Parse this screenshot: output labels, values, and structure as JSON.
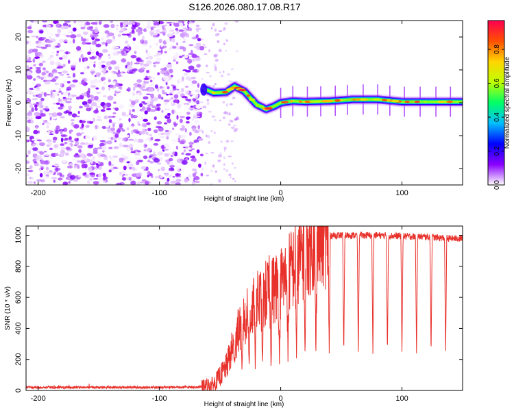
{
  "chart_data": [
    {
      "type": "heatmap",
      "title": "S126.2026.080.17.08.R17",
      "xlabel": "Height of straight line (km)",
      "ylabel": "Frequency (Hz)",
      "xlim": [
        -210,
        150
      ],
      "ylim": [
        -25,
        25
      ],
      "xticks": [
        -200,
        -100,
        0,
        100
      ],
      "xtick_labels": [
        "-200",
        "-100",
        "0",
        "100"
      ],
      "yticks": [
        -20,
        -10,
        0,
        10,
        20
      ],
      "ytick_labels": [
        "-20",
        "-10",
        "0",
        "10",
        "20"
      ],
      "noise_region_x": [
        -210,
        -65
      ],
      "signal_onset_x": -65,
      "ridge": {
        "x": [
          -65,
          -55,
          -45,
          -38,
          -30,
          -20,
          -12,
          -5,
          0,
          10,
          20,
          40,
          60,
          80,
          100,
          120,
          150
        ],
        "y": [
          4.5,
          3.0,
          3.2,
          5.0,
          3.5,
          -0.5,
          -2.0,
          -1.0,
          0.0,
          0.5,
          0.3,
          0.5,
          1.0,
          1.0,
          0.3,
          0.3,
          0.3
        ]
      },
      "colorbar": {
        "label": "Normalized spectral amplitude",
        "range": [
          0,
          0.97
        ],
        "ticks": [
          0,
          0.2,
          0.4,
          0.6,
          0.8
        ],
        "tick_labels": [
          "0.0",
          "0.2",
          "0.4",
          "0.6",
          "0.8"
        ],
        "colors": [
          "#ffffff",
          "#8a00ff",
          "#0000ff",
          "#00bfff",
          "#00ff66",
          "#bfff00",
          "#ffd500",
          "#ff5000",
          "#ff0050"
        ]
      }
    },
    {
      "type": "line",
      "title": "",
      "xlabel": "Height of straight line (km)",
      "ylabel": "SNR (10 * v/v)",
      "xlim": [
        -210,
        150
      ],
      "ylim": [
        0,
        1060
      ],
      "xticks": [
        -200,
        -100,
        0,
        100
      ],
      "xtick_labels": [
        "-200",
        "-100",
        "0",
        "100"
      ],
      "yticks": [
        0,
        200,
        400,
        600,
        800,
        1000
      ],
      "ytick_labels": [
        "0",
        "200",
        "400",
        "600",
        "800",
        "1000"
      ],
      "series": [
        {
          "name": "SNR",
          "color": "#e8312b",
          "x": [
            -210,
            -100,
            -65,
            -55,
            -45,
            -40,
            -35,
            -30,
            -25,
            -20,
            -15,
            -10,
            -5,
            0,
            5,
            10,
            15,
            20,
            25,
            30,
            35,
            40,
            45,
            50,
            60,
            80,
            100,
            120,
            140,
            150
          ],
          "y": [
            20,
            20,
            22,
            40,
            150,
            270,
            380,
            460,
            500,
            560,
            600,
            640,
            660,
            700,
            740,
            790,
            850,
            900,
            930,
            960,
            980,
            1000,
            1000,
            1000,
            1000,
            1000,
            995,
            990,
            980,
            980
          ],
          "dropouts": [
            {
              "x": -38,
              "y": 160
            },
            {
              "x": -32,
              "y": 130
            },
            {
              "x": -26,
              "y": 160
            },
            {
              "x": -21,
              "y": 130
            },
            {
              "x": -15,
              "y": 160
            },
            {
              "x": -8,
              "y": 140
            },
            {
              "x": -1,
              "y": 170
            },
            {
              "x": 6,
              "y": 190
            },
            {
              "x": 13,
              "y": 200
            },
            {
              "x": 20,
              "y": 210
            },
            {
              "x": 29,
              "y": 215
            },
            {
              "x": 40,
              "y": 220
            },
            {
              "x": 52,
              "y": 220
            },
            {
              "x": 64,
              "y": 220
            },
            {
              "x": 76,
              "y": 220
            },
            {
              "x": 88,
              "y": 220
            },
            {
              "x": 100,
              "y": 220
            },
            {
              "x": 112,
              "y": 220
            },
            {
              "x": 124,
              "y": 220
            },
            {
              "x": 136,
              "y": 215
            }
          ]
        }
      ]
    }
  ]
}
